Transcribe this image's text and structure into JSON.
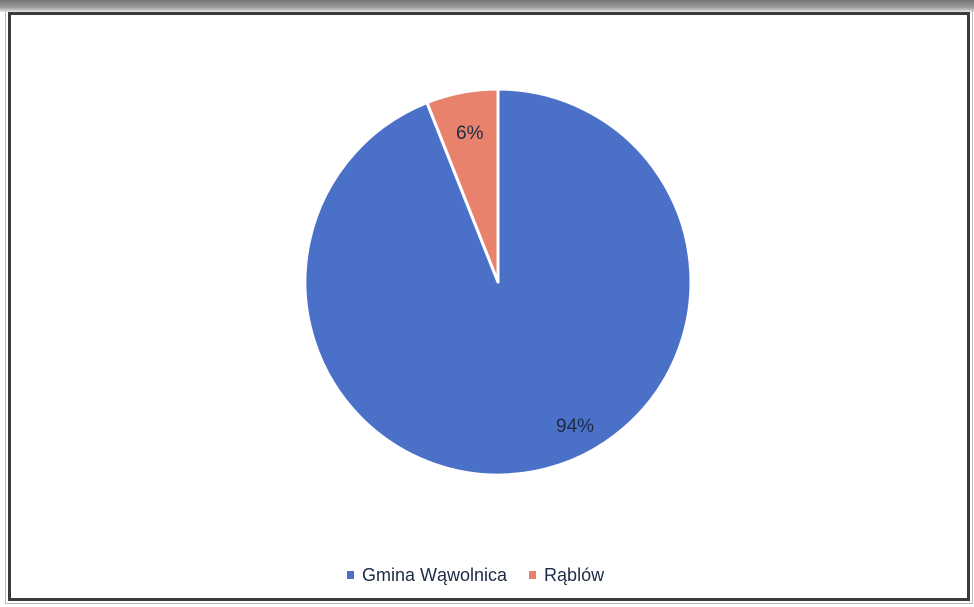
{
  "chart_data": {
    "type": "pie",
    "title": "",
    "categories": [
      "Gmina Wąwolnica",
      "Rąblów"
    ],
    "values": [
      94,
      6
    ],
    "data_labels": [
      "94%",
      "6%"
    ],
    "colors": [
      "#4a70c8",
      "#e9826c"
    ],
    "legend_position": "bottom"
  }
}
